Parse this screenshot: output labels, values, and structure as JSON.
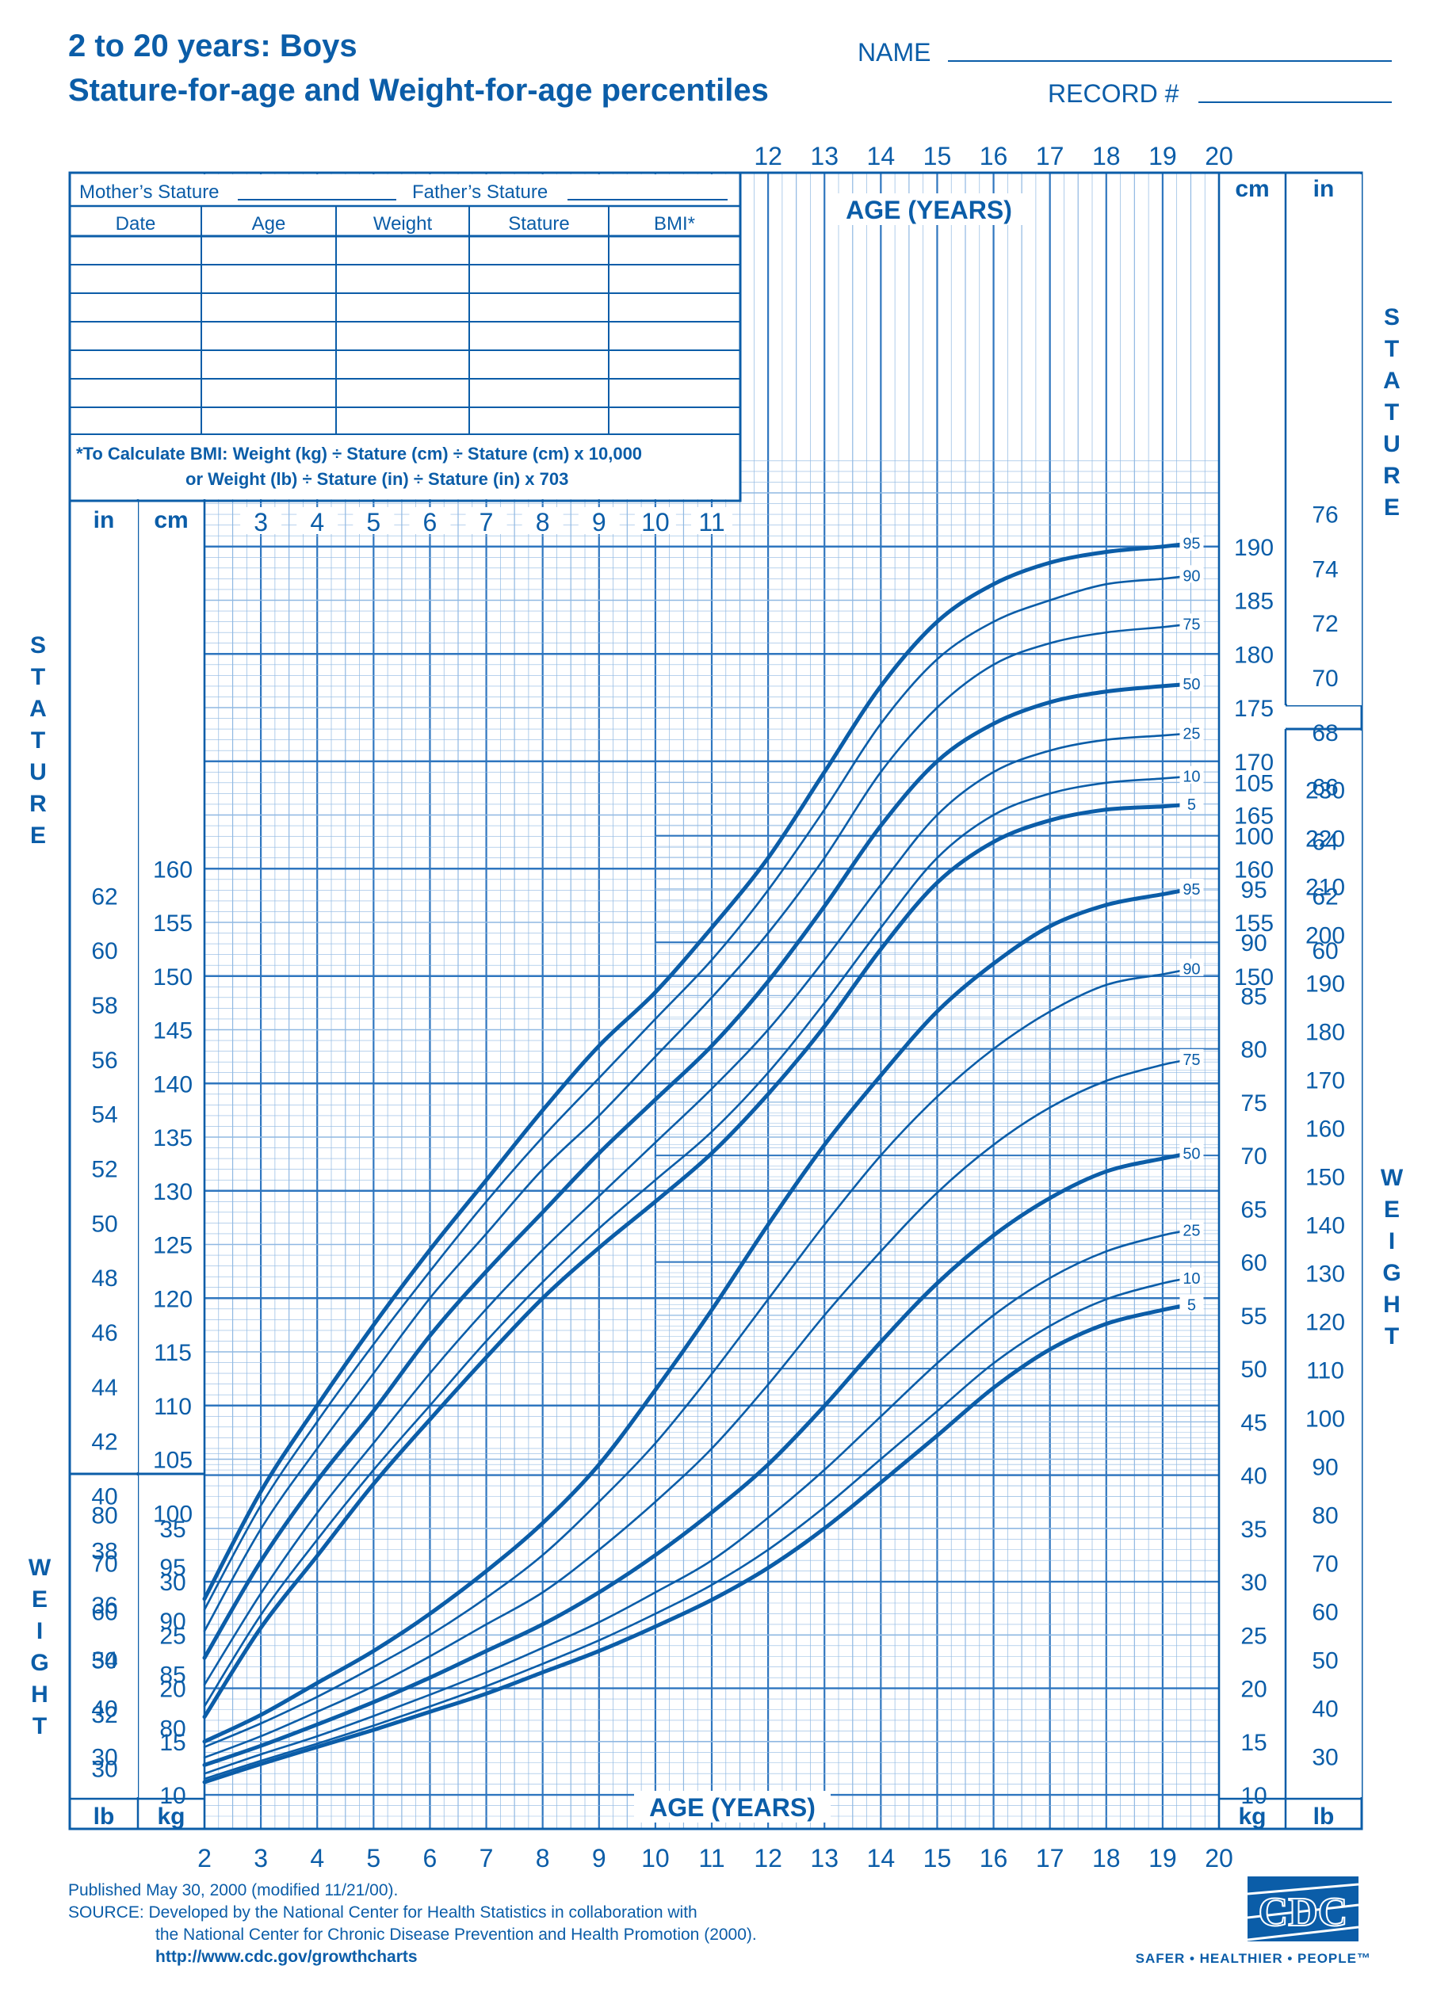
{
  "header": {
    "title_line1": "2 to 20 years: Boys",
    "title_line2": "Stature-for-age and Weight-for-age percentiles",
    "name_label": "NAME",
    "record_label": "RECORD #"
  },
  "record_table": {
    "mothers_stature": "Mother’s Stature",
    "fathers_stature": "Father’s Stature",
    "columns": [
      "Date",
      "Age",
      "Weight",
      "Stature",
      "BMI*"
    ],
    "bmi_note_line1": "*To Calculate BMI: Weight (kg) ÷ Stature (cm) ÷ Stature (cm) x 10,000",
    "bmi_note_line2": "or Weight (lb) ÷ Stature (in) ÷ Stature (in) x 703"
  },
  "chart_data": {
    "type": "line",
    "age_axis_label": "AGE (YEARS)",
    "age_ticks": [
      2,
      3,
      4,
      5,
      6,
      7,
      8,
      9,
      10,
      11,
      12,
      13,
      14,
      15,
      16,
      17,
      18,
      19,
      20
    ],
    "stature_side_label": "STATURE",
    "weight_side_label": "WEIGHT",
    "stature_units": {
      "cm": "cm",
      "in": "in"
    },
    "weight_units": {
      "kg": "kg",
      "lb": "lb"
    },
    "stature": {
      "xlim": [
        2,
        20
      ],
      "ylim_cm": [
        75,
        198
      ],
      "age": [
        2,
        3,
        4,
        5,
        6,
        7,
        8,
        9,
        10,
        11,
        12,
        13,
        14,
        15,
        16,
        17,
        18,
        19,
        19.5
      ],
      "percentiles": [
        {
          "name": "95",
          "bold": true,
          "cm": [
            92.0,
            102.0,
            110.0,
            117.5,
            124.5,
            131.0,
            137.5,
            143.5,
            148.5,
            154.5,
            161.0,
            169.0,
            177.0,
            183.0,
            186.5,
            188.5,
            189.5,
            190.0,
            190.3
          ]
        },
        {
          "name": "90",
          "bold": false,
          "cm": [
            91.0,
            100.7,
            108.5,
            115.7,
            122.5,
            129.0,
            135.0,
            140.5,
            146.0,
            151.5,
            158.0,
            165.5,
            173.5,
            179.5,
            183.0,
            185.0,
            186.5,
            187.0,
            187.3
          ]
        },
        {
          "name": "75",
          "bold": false,
          "cm": [
            89.0,
            98.5,
            106.0,
            113.0,
            120.0,
            126.0,
            132.0,
            137.0,
            142.5,
            148.0,
            154.0,
            161.0,
            169.0,
            175.0,
            179.0,
            181.0,
            182.0,
            182.5,
            182.8
          ]
        },
        {
          "name": "50",
          "bold": true,
          "cm": [
            86.5,
            95.5,
            103.0,
            109.5,
            116.5,
            122.5,
            128.0,
            133.5,
            138.5,
            143.5,
            149.5,
            156.5,
            164.0,
            170.0,
            173.5,
            175.5,
            176.5,
            177.0,
            177.2
          ]
        },
        {
          "name": "25",
          "bold": false,
          "cm": [
            84.0,
            92.5,
            100.0,
            106.5,
            113.0,
            119.0,
            124.5,
            129.5,
            134.5,
            139.5,
            145.0,
            151.5,
            158.5,
            165.0,
            169.0,
            171.0,
            172.0,
            172.4,
            172.6
          ]
        },
        {
          "name": "10",
          "bold": false,
          "cm": [
            82.0,
            90.5,
            97.5,
            104.0,
            110.0,
            116.0,
            121.5,
            126.5,
            131.0,
            135.5,
            141.0,
            147.5,
            154.5,
            161.0,
            165.0,
            167.0,
            168.0,
            168.4,
            168.6
          ]
        },
        {
          "name": "5",
          "bold": true,
          "cm": [
            81.0,
            89.3,
            96.0,
            102.7,
            108.7,
            114.5,
            120.0,
            124.7,
            129.0,
            133.5,
            139.0,
            145.3,
            152.5,
            158.7,
            162.5,
            164.5,
            165.5,
            165.8,
            166.0
          ]
        }
      ]
    },
    "weight": {
      "xlim": [
        2,
        20
      ],
      "ylim_kg": [
        8,
        106
      ],
      "age": [
        2,
        3,
        4,
        5,
        6,
        7,
        8,
        9,
        10,
        11,
        12,
        13,
        14,
        15,
        16,
        17,
        18,
        19,
        19.5
      ],
      "percentiles": [
        {
          "name": "95",
          "bold": true,
          "kg": [
            15.0,
            17.5,
            20.5,
            23.5,
            27.0,
            31.0,
            35.5,
            41.0,
            48.0,
            55.5,
            63.5,
            71.0,
            77.5,
            83.5,
            88.0,
            91.5,
            93.5,
            94.5,
            95.0
          ]
        },
        {
          "name": "90",
          "bold": false,
          "kg": [
            14.5,
            16.7,
            19.2,
            22.0,
            25.0,
            28.5,
            32.5,
            37.5,
            43.0,
            49.5,
            56.5,
            63.5,
            70.0,
            75.5,
            80.0,
            83.5,
            86.0,
            87.0,
            87.5
          ]
        },
        {
          "name": "75",
          "bold": false,
          "kg": [
            13.5,
            15.5,
            17.8,
            20.2,
            23.0,
            26.0,
            29.0,
            33.0,
            37.5,
            42.5,
            48.5,
            55.0,
            61.0,
            66.5,
            71.0,
            74.5,
            77.0,
            78.5,
            79.0
          ]
        },
        {
          "name": "50",
          "bold": true,
          "kg": [
            12.8,
            14.6,
            16.6,
            18.7,
            21.0,
            23.5,
            26.0,
            29.0,
            32.5,
            36.5,
            41.0,
            46.5,
            52.5,
            58.0,
            62.5,
            66.0,
            68.5,
            69.7,
            70.2
          ]
        },
        {
          "name": "25",
          "bold": false,
          "kg": [
            12.0,
            13.8,
            15.5,
            17.4,
            19.4,
            21.5,
            23.8,
            26.2,
            29.0,
            32.0,
            36.0,
            40.5,
            45.5,
            50.5,
            55.0,
            58.5,
            61.0,
            62.5,
            63.0
          ]
        },
        {
          "name": "10",
          "bold": false,
          "kg": [
            11.5,
            13.2,
            14.8,
            16.5,
            18.3,
            20.2,
            22.3,
            24.5,
            27.0,
            29.7,
            33.0,
            37.0,
            41.5,
            46.0,
            50.5,
            54.0,
            56.5,
            58.0,
            58.5
          ]
        },
        {
          "name": "5",
          "bold": true,
          "kg": [
            11.2,
            12.9,
            14.5,
            16.1,
            17.8,
            19.5,
            21.5,
            23.5,
            25.8,
            28.3,
            31.3,
            35.0,
            39.3,
            43.7,
            48.2,
            51.8,
            54.2,
            55.5,
            56.0
          ]
        }
      ]
    },
    "stature_cm_ticks_left": [
      80,
      85,
      90,
      95,
      100,
      105,
      110,
      115,
      120,
      125,
      130,
      135,
      140,
      145,
      150,
      155,
      160
    ],
    "stature_in_ticks_left": [
      30,
      32,
      34,
      36,
      38,
      40,
      42,
      44,
      46,
      48,
      50,
      52,
      54,
      56,
      58,
      60,
      62
    ],
    "stature_cm_ticks_right": [
      150,
      155,
      160,
      165,
      170,
      175,
      180,
      185,
      190
    ],
    "stature_in_ticks_right": [
      60,
      62,
      64,
      66,
      68,
      70,
      72,
      74,
      76
    ],
    "weight_kg_ticks_left": [
      10,
      15,
      20,
      25,
      30,
      35
    ],
    "weight_lb_ticks_left": [
      30,
      40,
      50,
      60,
      70,
      80
    ],
    "weight_kg_ticks_right": [
      10,
      15,
      20,
      25,
      30,
      35,
      40,
      45,
      50,
      55,
      60,
      65,
      70,
      75,
      80,
      85,
      90,
      95,
      100,
      105
    ],
    "weight_lb_ticks_right": [
      30,
      40,
      50,
      60,
      70,
      80,
      90,
      100,
      110,
      120,
      130,
      140,
      150,
      160,
      170,
      180,
      190,
      200,
      210,
      220,
      230
    ],
    "colors": {
      "ink": "#0b5da8",
      "grid_major": "#2f76bf",
      "grid_minor": "#8fb8e2"
    }
  },
  "footer": {
    "published": "Published May 30, 2000 (modified 11/21/00).",
    "source_line1": "SOURCE: Developed by the National Center for Health Statistics in collaboration with",
    "source_line2": "the National Center for Chronic Disease Prevention and Health Promotion (2000).",
    "url": "http://www.cdc.gov/growthcharts",
    "logo_text": "CDC",
    "slogan": "SAFER • HEALTHIER • PEOPLE™"
  }
}
